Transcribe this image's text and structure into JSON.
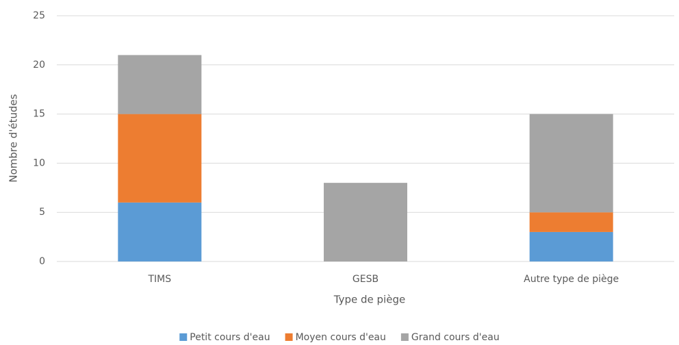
{
  "chart_data": {
    "type": "stacked_bar",
    "categories": [
      "TIMS",
      "GESB",
      "Autre type de piège"
    ],
    "series": [
      {
        "name": "Petit cours d'eau",
        "color": "#5b9bd5",
        "values": [
          6,
          0,
          3
        ]
      },
      {
        "name": "Moyen cours d'eau",
        "color": "#ed7d31",
        "values": [
          9,
          0,
          2
        ]
      },
      {
        "name": "Grand cours d'eau",
        "color": "#a5a5a5",
        "values": [
          6,
          8,
          10
        ]
      }
    ],
    "xlabel": "Type de piège",
    "ylabel": "Nombre d'études",
    "ylim": [
      0,
      25
    ],
    "yticks": [
      0,
      5,
      10,
      15,
      20,
      25
    ],
    "grid": true,
    "legend": "bottom"
  }
}
